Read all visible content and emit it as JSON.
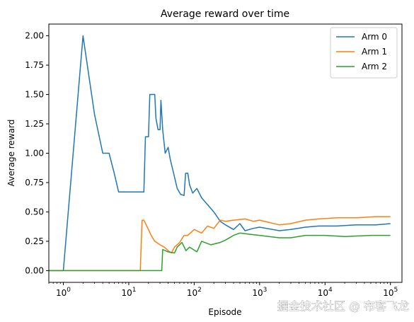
{
  "chart_data": {
    "type": "line",
    "title": "Average reward over time",
    "xlabel": "Episode",
    "ylabel": "Average reward",
    "xscale": "log",
    "xlim": [
      0.6,
      150000
    ],
    "ylim": [
      -0.1,
      2.1
    ],
    "xticks": [
      {
        "value": 1,
        "mant": "10",
        "exp": "0"
      },
      {
        "value": 10,
        "mant": "10",
        "exp": "1"
      },
      {
        "value": 100,
        "mant": "10",
        "exp": "2"
      },
      {
        "value": 1000,
        "mant": "10",
        "exp": "3"
      },
      {
        "value": 10000,
        "mant": "10",
        "exp": "4"
      },
      {
        "value": 100000,
        "mant": "10",
        "exp": "5"
      }
    ],
    "yticks": [
      {
        "value": 0.0,
        "label": "0.00"
      },
      {
        "value": 0.25,
        "label": "0.25"
      },
      {
        "value": 0.5,
        "label": "0.50"
      },
      {
        "value": 0.75,
        "label": "0.75"
      },
      {
        "value": 1.0,
        "label": "1.00"
      },
      {
        "value": 1.25,
        "label": "1.25"
      },
      {
        "value": 1.5,
        "label": "1.50"
      },
      {
        "value": 1.75,
        "label": "1.75"
      },
      {
        "value": 2.0,
        "label": "2.00"
      }
    ],
    "grid": false,
    "legend_position": "top-right",
    "series": [
      {
        "name": "Arm 0",
        "color": "#1f77b4",
        "points": [
          [
            0.6,
            0
          ],
          [
            1,
            0
          ],
          [
            2,
            2
          ],
          [
            3,
            1.33
          ],
          [
            4,
            1.0
          ],
          [
            5,
            1.0
          ],
          [
            6,
            0.83
          ],
          [
            7,
            0.67
          ],
          [
            10,
            0.67
          ],
          [
            17,
            0.67
          ],
          [
            18,
            1.14
          ],
          [
            20,
            1.14
          ],
          [
            21,
            1.5
          ],
          [
            25,
            1.5
          ],
          [
            26,
            1.3
          ],
          [
            28,
            1.2
          ],
          [
            30,
            1.2
          ],
          [
            31,
            1.45
          ],
          [
            33,
            1.2
          ],
          [
            36,
            1.0
          ],
          [
            40,
            1.05
          ],
          [
            43,
            0.95
          ],
          [
            48,
            0.84
          ],
          [
            55,
            0.7
          ],
          [
            62,
            0.65
          ],
          [
            70,
            0.64
          ],
          [
            74,
            0.83
          ],
          [
            80,
            0.83
          ],
          [
            85,
            0.73
          ],
          [
            95,
            0.66
          ],
          [
            110,
            0.7
          ],
          [
            130,
            0.62
          ],
          [
            150,
            0.58
          ],
          [
            200,
            0.5
          ],
          [
            250,
            0.42
          ],
          [
            300,
            0.39
          ],
          [
            400,
            0.35
          ],
          [
            500,
            0.4
          ],
          [
            600,
            0.34
          ],
          [
            800,
            0.36
          ],
          [
            1000,
            0.37
          ],
          [
            2000,
            0.34
          ],
          [
            3000,
            0.35
          ],
          [
            5000,
            0.37
          ],
          [
            8000,
            0.38
          ],
          [
            15000,
            0.38
          ],
          [
            30000,
            0.39
          ],
          [
            60000,
            0.39
          ],
          [
            100000,
            0.4
          ]
        ]
      },
      {
        "name": "Arm 1",
        "color": "#ff7f0e",
        "points": [
          [
            0.6,
            0
          ],
          [
            15,
            0
          ],
          [
            16,
            0.43
          ],
          [
            17,
            0.43
          ],
          [
            20,
            0.35
          ],
          [
            22,
            0.3
          ],
          [
            25,
            0.25
          ],
          [
            30,
            0.22
          ],
          [
            35,
            0.2
          ],
          [
            40,
            0.17
          ],
          [
            45,
            0.15
          ],
          [
            50,
            0.2
          ],
          [
            60,
            0.24
          ],
          [
            70,
            0.3
          ],
          [
            80,
            0.3
          ],
          [
            100,
            0.35
          ],
          [
            130,
            0.32
          ],
          [
            160,
            0.38
          ],
          [
            200,
            0.36
          ],
          [
            250,
            0.43
          ],
          [
            300,
            0.42
          ],
          [
            400,
            0.43
          ],
          [
            600,
            0.44
          ],
          [
            800,
            0.42
          ],
          [
            1000,
            0.43
          ],
          [
            2000,
            0.39
          ],
          [
            3000,
            0.4
          ],
          [
            5000,
            0.43
          ],
          [
            8000,
            0.44
          ],
          [
            15000,
            0.45
          ],
          [
            30000,
            0.45
          ],
          [
            60000,
            0.46
          ],
          [
            100000,
            0.46
          ]
        ]
      },
      {
        "name": "Arm 2",
        "color": "#2ca02c",
        "points": [
          [
            0.6,
            0
          ],
          [
            32,
            0
          ],
          [
            33,
            0.18
          ],
          [
            40,
            0.16
          ],
          [
            50,
            0.15
          ],
          [
            55,
            0.2
          ],
          [
            65,
            0.24
          ],
          [
            75,
            0.17
          ],
          [
            85,
            0.2
          ],
          [
            110,
            0.16
          ],
          [
            130,
            0.25
          ],
          [
            180,
            0.22
          ],
          [
            250,
            0.24
          ],
          [
            300,
            0.26
          ],
          [
            400,
            0.3
          ],
          [
            500,
            0.32
          ],
          [
            700,
            0.31
          ],
          [
            1000,
            0.3
          ],
          [
            2000,
            0.28
          ],
          [
            3000,
            0.28
          ],
          [
            5000,
            0.3
          ],
          [
            10000,
            0.3
          ],
          [
            20000,
            0.29
          ],
          [
            50000,
            0.3
          ],
          [
            100000,
            0.3
          ]
        ]
      }
    ]
  },
  "watermark": {
    "text": "掘金技术社区 @ 布客飞龙"
  }
}
